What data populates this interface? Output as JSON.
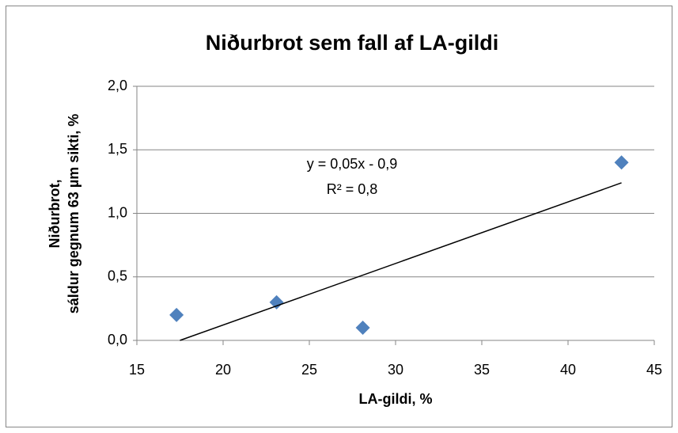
{
  "chart_data": {
    "type": "scatter",
    "title": "Niðurbrot sem fall af LA-gildi",
    "xlabel": "LA-gildi, %",
    "ylabel": [
      "Niðurbrot,",
      "sáldur gegnum 63 µm sikti, %"
    ],
    "annotations": [
      "y = 0,05x - 0,9",
      "R² = 0,8"
    ],
    "series": [
      {
        "x": [
          17.3,
          23.1,
          28.1,
          43.1
        ],
        "values": [
          0.2,
          0.3,
          0.1,
          1.4
        ],
        "color": "#4f81bd"
      }
    ],
    "trendline": {
      "x": [
        17.5,
        43.1
      ],
      "values": [
        0,
        1.24
      ],
      "color": "#000000"
    },
    "xlim": [
      15,
      45
    ],
    "xticks": [
      15,
      20,
      25,
      30,
      35,
      40,
      45
    ],
    "ylim": [
      0,
      2
    ],
    "yticks": [
      {
        "value": 0,
        "label": "0,0"
      },
      {
        "value": 0.5,
        "label": "0,5"
      },
      {
        "value": 1,
        "label": "1,0"
      },
      {
        "value": 1.5,
        "label": "1,5"
      },
      {
        "value": 2,
        "label": "2,0"
      }
    ],
    "grid": true
  }
}
